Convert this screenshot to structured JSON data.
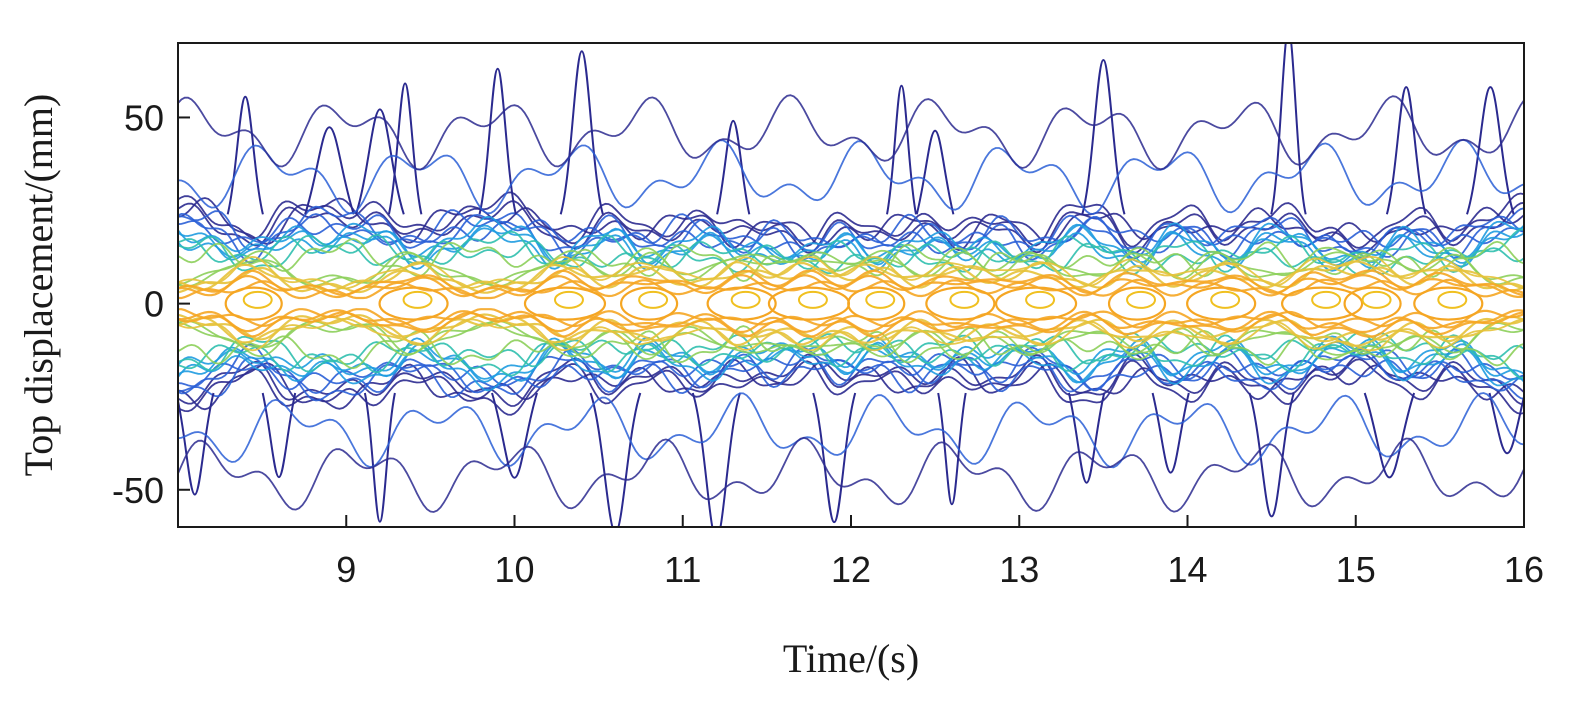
{
  "chart_data": {
    "type": "contour",
    "xlabel": "Time/(s)",
    "ylabel": "Top displacement/(mm)",
    "xlim": [
      8,
      16
    ],
    "ylim": [
      -60,
      70
    ],
    "xticks": [
      9,
      10,
      11,
      12,
      13,
      14,
      15,
      16
    ],
    "yticks": [
      -50,
      0,
      50
    ],
    "grid": false,
    "legend": "none",
    "colormap": [
      "#2b2a8f",
      "#2a5fd6",
      "#1e9be0",
      "#2fbfae",
      "#8ccf5a",
      "#e6c23a",
      "#f5a623"
    ],
    "contour_levels": 20,
    "peak_center_y": 0,
    "band_half_width_y": [
      -20,
      20
    ],
    "density_peaks_x": [
      8.45,
      9.4,
      10.3,
      10.8,
      11.35,
      11.75,
      12.15,
      12.65,
      13.1,
      13.7,
      14.2,
      14.8,
      15.1,
      15.55
    ],
    "outer_spikes_up_x": [
      8.4,
      8.9,
      9.2,
      9.35,
      9.9,
      10.4,
      11.3,
      12.3,
      12.5,
      13.5,
      14.6,
      15.3,
      15.8
    ],
    "outer_spikes_down_x": [
      8.1,
      8.6,
      9.2,
      10.0,
      10.6,
      11.2,
      11.9,
      12.6,
      13.4,
      13.9,
      14.5,
      15.2,
      15.9
    ]
  }
}
